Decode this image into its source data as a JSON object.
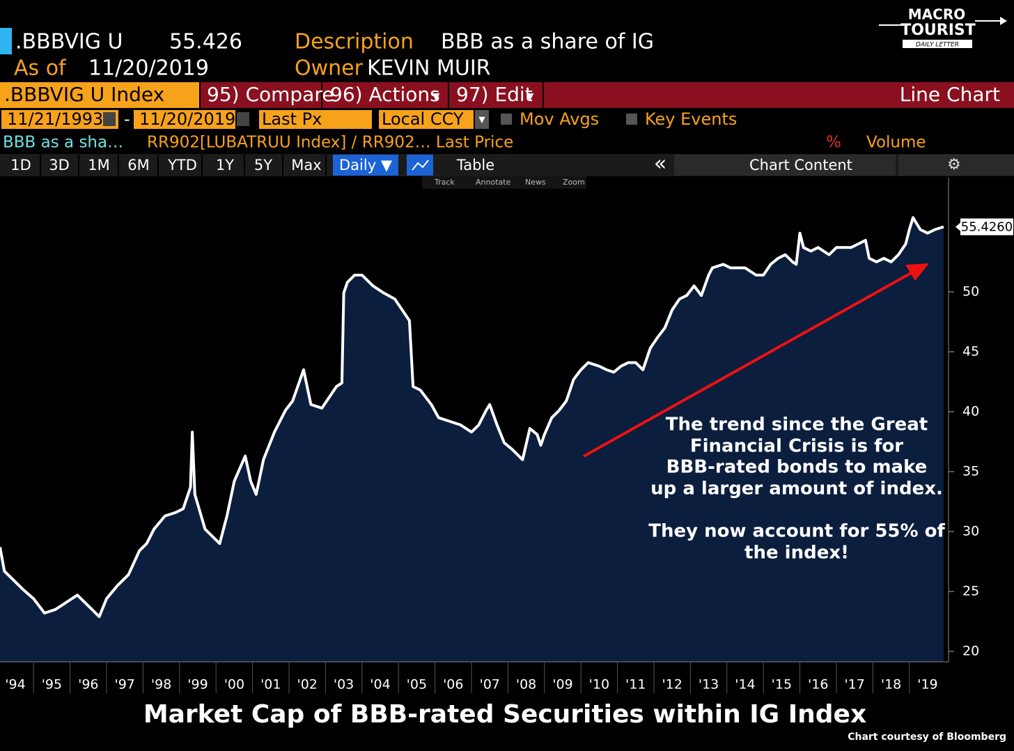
{
  "header": {
    "ticker": ".BBBVIG U",
    "price": "55.426",
    "description_label": "Description",
    "description": "BBB as a share of IG",
    "as_of_label": "As of",
    "as_of": "11/20/2019",
    "owner_label": "Owner",
    "owner": "KEVIN MUIR"
  },
  "logo": {
    "line1": "MACRO",
    "line2": "TOURIST",
    "line3": "DAILY LETTER"
  },
  "toolbar": {
    "security": ".BBBVIG U Index",
    "compare": "95) Compare",
    "actions": "96) Actions",
    "edit": "97) Edit",
    "chart_kind": "Line Chart"
  },
  "range_bar": {
    "start": "11/21/1993",
    "dash": "-",
    "end": "11/20/2019",
    "field": "Last Px",
    "currency": "Local CCY",
    "mov_avgs": "Mov Avgs",
    "key_events": "Key Events"
  },
  "legend_bar": {
    "series": "BBB as a sha…",
    "formula": "RR902[LUBATRUU Index] / RR902… Last Price",
    "percent": "%",
    "volume": "Volume"
  },
  "period_buttons": [
    "1D",
    "3D",
    "1M",
    "6M",
    "YTD",
    "1Y",
    "5Y",
    "Max"
  ],
  "view_tools": {
    "frequency": "Daily ▼",
    "table": "Table",
    "collapse": "«",
    "content": "Chart Content"
  },
  "chart_tools": [
    "Track",
    "Annotate",
    "News",
    "Zoom"
  ],
  "chart_data": {
    "type": "line",
    "title": "Market Cap of BBB-rated Securities within IG Index",
    "credit": "Chart courtesy of Bloomberg",
    "annotations": [
      "The trend since the Great",
      "Financial Crisis is for",
      "BBB-rated bonds to make",
      "up a larger amount of index.",
      "They now account for 55% of",
      "the index!"
    ],
    "last_value_label": "55.4260",
    "xlim": [
      1994.08,
      2019.94
    ],
    "ylim": [
      19.13,
      59.53
    ],
    "yticks": [
      20,
      25,
      30,
      35,
      40,
      45,
      50
    ],
    "xticks": [
      {
        "value": 1994,
        "label": "'94"
      },
      {
        "value": 1995,
        "label": "'95"
      },
      {
        "value": 1996,
        "label": "'96"
      },
      {
        "value": 1997,
        "label": "'97"
      },
      {
        "value": 1998,
        "label": "'98"
      },
      {
        "value": 1999,
        "label": "'99"
      },
      {
        "value": 2000,
        "label": "'00"
      },
      {
        "value": 2001,
        "label": "'01"
      },
      {
        "value": 2002,
        "label": "'02"
      },
      {
        "value": 2003,
        "label": "'03"
      },
      {
        "value": 2004,
        "label": "'04"
      },
      {
        "value": 2005,
        "label": "'05"
      },
      {
        "value": 2006,
        "label": "'06"
      },
      {
        "value": 2007,
        "label": "'07"
      },
      {
        "value": 2008,
        "label": "'08"
      },
      {
        "value": 2009,
        "label": "'09"
      },
      {
        "value": 2010,
        "label": "'10"
      },
      {
        "value": 2011,
        "label": "'11"
      },
      {
        "value": 2012,
        "label": "'12"
      },
      {
        "value": 2013,
        "label": "'13"
      },
      {
        "value": 2014,
        "label": "'14"
      },
      {
        "value": 2015,
        "label": "'15"
      },
      {
        "value": 2016,
        "label": "'16"
      },
      {
        "value": 2017,
        "label": "'17"
      },
      {
        "value": 2018,
        "label": "'18"
      },
      {
        "value": 2019,
        "label": "'19"
      }
    ],
    "series": [
      {
        "name": "BBB as a sha…",
        "color": "#ffffff",
        "fill": "#0b1e3e",
        "x": [
          1994.08,
          1994.2,
          1994.4,
          1994.7,
          1995.0,
          1995.3,
          1995.6,
          1995.9,
          1996.2,
          1996.5,
          1996.8,
          1997.0,
          1997.3,
          1997.6,
          1997.9,
          1998.1,
          1998.3,
          1998.6,
          1998.9,
          1999.1,
          1999.3,
          1999.35,
          1999.42,
          1999.7,
          1999.9,
          2000.1,
          2000.3,
          2000.5,
          2000.8,
          2000.95,
          2001.1,
          2001.3,
          2001.6,
          2001.9,
          2002.1,
          2002.4,
          2002.6,
          2002.9,
          2003.1,
          2003.3,
          2003.45,
          2003.5,
          2003.6,
          2003.8,
          2004.0,
          2004.3,
          2004.6,
          2004.9,
          2005.1,
          2005.3,
          2005.4,
          2005.6,
          2005.9,
          2006.1,
          2006.4,
          2006.7,
          2007.0,
          2007.2,
          2007.4,
          2007.5,
          2007.7,
          2007.9,
          2008.1,
          2008.3,
          2008.4,
          2008.6,
          2008.8,
          2008.9,
          2009.0,
          2009.2,
          2009.4,
          2009.6,
          2009.8,
          2010.0,
          2010.2,
          2010.5,
          2010.7,
          2010.9,
          2011.1,
          2011.3,
          2011.5,
          2011.7,
          2011.9,
          2012.1,
          2012.3,
          2012.5,
          2012.7,
          2012.9,
          2013.1,
          2013.3,
          2013.5,
          2013.6,
          2013.9,
          2014.1,
          2014.3,
          2014.5,
          2014.8,
          2015.0,
          2015.2,
          2015.4,
          2015.6,
          2015.8,
          2015.9,
          2016.0,
          2016.1,
          2016.3,
          2016.5,
          2016.8,
          2017.0,
          2017.2,
          2017.4,
          2017.6,
          2017.8,
          2017.9,
          2018.1,
          2018.3,
          2018.5,
          2018.7,
          2018.9,
          2019.0,
          2019.1,
          2019.3,
          2019.5,
          2019.7,
          2019.94
        ],
        "values": [
          28.7,
          26.7,
          26.1,
          25.2,
          24.4,
          23.2,
          23.5,
          24.1,
          24.7,
          23.8,
          22.9,
          24.4,
          25.5,
          26.4,
          28.4,
          29.0,
          30.2,
          31.3,
          31.6,
          31.9,
          33.7,
          38.3,
          33.1,
          30.2,
          29.6,
          29.0,
          31.3,
          34.2,
          36.3,
          34.2,
          33.1,
          36.0,
          38.3,
          40.1,
          40.9,
          43.5,
          40.6,
          40.3,
          41.2,
          42.1,
          42.4,
          49.9,
          50.8,
          51.4,
          51.4,
          50.5,
          49.9,
          49.4,
          48.5,
          47.6,
          42.1,
          41.8,
          40.6,
          39.5,
          39.2,
          38.9,
          38.3,
          38.9,
          40.1,
          40.6,
          38.9,
          37.4,
          36.9,
          36.3,
          36.0,
          38.6,
          38.1,
          37.2,
          38.1,
          39.5,
          40.1,
          40.9,
          42.7,
          43.5,
          44.1,
          43.8,
          43.5,
          43.3,
          43.8,
          44.1,
          44.1,
          43.5,
          45.3,
          46.2,
          47.0,
          48.5,
          49.4,
          49.7,
          50.5,
          49.7,
          51.4,
          52.0,
          52.3,
          52.0,
          52.0,
          52.0,
          51.4,
          51.4,
          52.3,
          52.8,
          53.1,
          52.5,
          52.3,
          54.9,
          53.7,
          53.4,
          53.7,
          53.1,
          53.7,
          53.7,
          53.7,
          54.0,
          54.3,
          52.8,
          52.5,
          52.8,
          52.5,
          53.1,
          54.0,
          55.2,
          56.2,
          55.2,
          54.9,
          55.2,
          55.426
        ]
      }
    ]
  }
}
